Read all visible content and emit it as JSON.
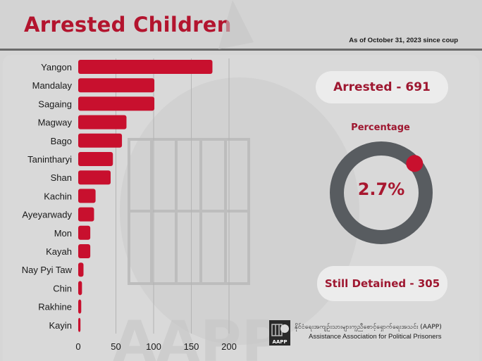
{
  "header": {
    "title": "Arrested Children",
    "as_of": "As of October 31, 2023 since coup"
  },
  "stats": {
    "arrested_label": "Arrested - 691",
    "percentage_title": "Percentage",
    "percentage_value": "2.7%",
    "percentage_fraction": 0.027,
    "detained_label": "Still Detained - 305"
  },
  "org": {
    "name_mm": "နိုင်ငံရေးအကျဉ်းသားများကူညီစောင့်ရှောက်ရေးအသင်း (AAPP)",
    "name_en": "Assistance Association for Political Prisoners",
    "logo_text": "AAPP"
  },
  "colors": {
    "bar": "#c8102e",
    "accent": "#a8172f",
    "donut_ring": "#585c60",
    "pill_bg": "#ececec"
  },
  "chart_data": {
    "type": "bar",
    "orientation": "horizontal",
    "title": "",
    "xlabel": "",
    "ylabel": "",
    "categories": [
      "Yangon",
      "Mandalay",
      "Sagaing",
      "Magway",
      "Bago",
      "Tanintharyi",
      "Shan",
      "Kachin",
      "Ayeyarwady",
      "Mon",
      "Kayah",
      "Nay Pyi Taw",
      "Chin",
      "Rakhine",
      "Kayin"
    ],
    "values": [
      178,
      101,
      101,
      64,
      58,
      46,
      43,
      23,
      21,
      16,
      16,
      7,
      5,
      4,
      3
    ],
    "xlim": [
      0,
      200
    ],
    "xticks": [
      0,
      50,
      100,
      150,
      200
    ],
    "grid": true
  }
}
